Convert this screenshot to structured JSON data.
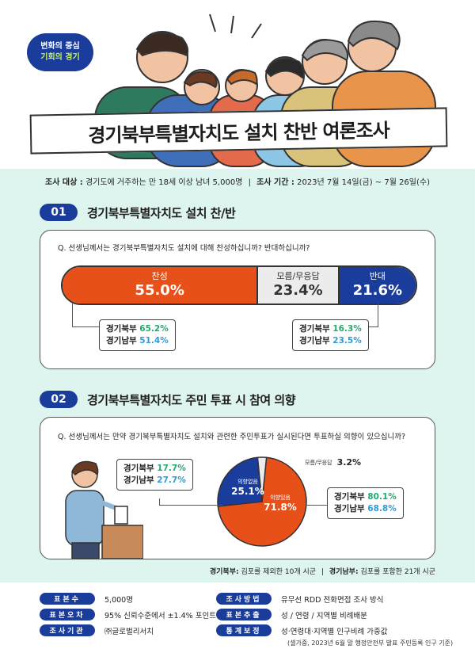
{
  "logo": {
    "line1": "변화의 중심",
    "line2": "기회의 경기"
  },
  "title": "경기북부특별자치도 설치 찬반 여론조사",
  "survey": {
    "target_label": "조사 대상 :",
    "target_value": "경기도에 거주하는 만 18세 이상 남녀 5,000명",
    "sep": "|",
    "period_label": "조사 기간 :",
    "period_value": "2023년 7월 14일(금) ~ 7월 26일(수)"
  },
  "section1": {
    "num": "01",
    "title": "경기북부특별자치도 설치 찬/반",
    "question": "Q. 선생님께서는 경기북부특별자치도 설치에 대해 찬성하십니까? 반대하십니까?",
    "left_box": {
      "r1_label": "경기북부",
      "r1_value": "65.2%",
      "r2_label": "경기남부",
      "r2_value": "51.4%"
    },
    "right_box": {
      "r1_label": "경기북부",
      "r1_value": "16.3%",
      "r2_label": "경기남부",
      "r2_value": "23.5%"
    }
  },
  "section2": {
    "num": "02",
    "title": "경기북부특별자치도 주민 투표 시 참여 의향",
    "question": "Q. 선생님께서는 만약 경기북부특별자치도 설치와 관련한 주민투표가 실시된다면 투표하실 의향이 있으십니까?",
    "left_box": {
      "r1_label": "경기북부",
      "r1_value": "17.7%",
      "r2_label": "경기남부",
      "r2_value": "27.7%"
    },
    "right_box": {
      "r1_label": "경기북부",
      "r1_value": "80.1%",
      "r2_label": "경기남부",
      "r2_value": "68.8%"
    }
  },
  "footnote": {
    "north_label": "경기북부:",
    "north_value": "김포를 제외한 10개 시군",
    "sep": "|",
    "south_label": "경기남부:",
    "south_value": "김포를 포함한 21개 시군"
  },
  "meta": [
    {
      "tag": "표본수",
      "value": "5,000명"
    },
    {
      "tag": "표본오차",
      "value": "95% 신뢰수준에서 ±1.4% 포인트"
    },
    {
      "tag": "조사기관",
      "value": "㈜글로벌리서치"
    },
    {
      "tag": "조사방법",
      "value": "유무선 RDD 전화면접 조사 방식"
    },
    {
      "tag": "표본추출",
      "value": "성 / 연령 / 지역별 비례배분"
    },
    {
      "tag": "통계보정",
      "value": "성·연령대·지역별 인구비례 가중값"
    }
  ],
  "meta_sub": "(셀가중, 2023년 6월 말 행정안전부 발표 주민등록 인구 기준)",
  "colors": {
    "orange": "#e8501a",
    "navy": "#1a3d9c",
    "gray": "#ececec",
    "mint": "#def4ee",
    "green": "#1faa6e",
    "blue": "#2f9bd6"
  },
  "chart_data": [
    {
      "type": "bar",
      "categories": [
        "찬성",
        "모름/무응답",
        "반대"
      ],
      "values": [
        55.0,
        23.4,
        21.6
      ],
      "labels": [
        "55.0%",
        "23.4%",
        "21.6%"
      ],
      "stacked": true
    },
    {
      "type": "pie",
      "categories": [
        "의향있음",
        "의향없음",
        "모름/무응답"
      ],
      "values": [
        71.8,
        25.1,
        3.2
      ],
      "labels": [
        "71.8%",
        "25.1%",
        "3.2%"
      ]
    }
  ]
}
